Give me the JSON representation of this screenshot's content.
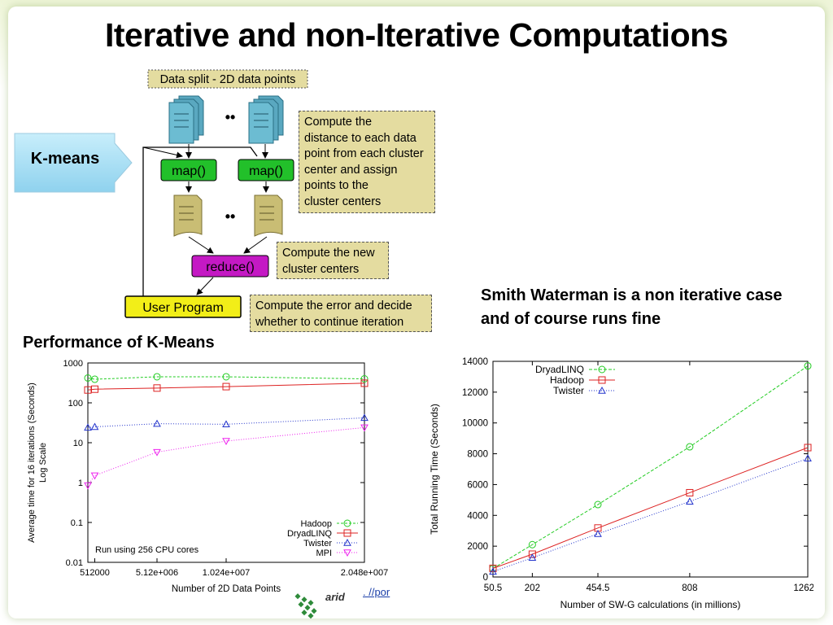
{
  "title": "Iterative and non-Iterative Computations",
  "callout": {
    "label": "K-means"
  },
  "diagram": {
    "data_split_label": "Data split - 2D data points",
    "ellipsis": "••",
    "map_label": "map()",
    "reduce_label": "reduce()",
    "user_program_label": "User Program",
    "notes": {
      "map_note": "Compute the\ndistance to each data\npoint from each cluster\ncenter and assign\npoints to the\ncluster centers",
      "reduce_note": "Compute the new\ncluster centers",
      "user_note": "Compute the error and decide\nwhether to continue iteration"
    }
  },
  "smith_waterman_text": "Smith Waterman is a non iterative case and of course runs fine",
  "performance_label": "Performance of K-Means",
  "bottom_link_text": ".   //por",
  "chart_data": [
    {
      "type": "line",
      "title": "",
      "xlabel": "Number of 2D Data Points",
      "ylabel": "Average time for 16 iterations (Seconds)",
      "ylabel2": "Log Scale",
      "yscale": "log",
      "ylim": [
        0.01,
        1000
      ],
      "xlim": [
        0,
        20480000
      ],
      "xtick_labels": [
        "512000",
        "5.12e+006",
        "1.024e+007",
        "2.048e+007"
      ],
      "xtick_values": [
        512000,
        5120000,
        10240000,
        20480000
      ],
      "ytick_labels": [
        "0.01",
        "0.1",
        "1",
        "10",
        "100",
        "1000"
      ],
      "annotation": "Run using 256 CPU cores",
      "legend_position": "bottom-right",
      "series": [
        {
          "name": "Hadoop",
          "color": "#22cc22",
          "marker": "circle",
          "dash": "3,2",
          "x": [
            0,
            512000,
            5120000,
            10240000,
            20480000
          ],
          "y": [
            420,
            390,
            450,
            450,
            400
          ]
        },
        {
          "name": "DryadLINQ",
          "color": "#dd2222",
          "marker": "square",
          "dash": "",
          "x": [
            0,
            512000,
            5120000,
            10240000,
            20480000
          ],
          "y": [
            210,
            220,
            235,
            255,
            310
          ]
        },
        {
          "name": "Twister",
          "color": "#2233cc",
          "marker": "triangle",
          "dash": "1,2",
          "x": [
            0,
            512000,
            5120000,
            10240000,
            20480000
          ],
          "y": [
            24,
            25,
            30,
            29,
            42
          ]
        },
        {
          "name": "MPI",
          "color": "#ee22ee",
          "marker": "triangle-down",
          "dash": "1,2",
          "x": [
            0,
            512000,
            5120000,
            10240000,
            20480000
          ],
          "y": [
            0.85,
            1.5,
            5.8,
            11,
            24
          ]
        }
      ]
    },
    {
      "type": "line",
      "title": "",
      "xlabel": "Number of SW-G calculations (in millions)",
      "ylabel": "Total Running Time (Seconds)",
      "xlim": [
        50.5,
        1262.5
      ],
      "ylim": [
        0,
        14000
      ],
      "xtick_labels": [
        "50.5",
        "202",
        "454.5",
        "808",
        "1262.5"
      ],
      "xtick_values": [
        50.5,
        202,
        454.5,
        808,
        1262.5
      ],
      "ytick_values": [
        0,
        2000,
        4000,
        6000,
        8000,
        10000,
        12000,
        14000
      ],
      "legend_position": "top-left",
      "series": [
        {
          "name": "DryadLINQ",
          "color": "#22cc22",
          "marker": "circle",
          "dash": "4,2",
          "x": [
            50.5,
            202,
            454.5,
            808,
            1262.5
          ],
          "y": [
            550,
            2100,
            4700,
            8450,
            13700
          ]
        },
        {
          "name": "Hadoop",
          "color": "#dd2222",
          "marker": "square",
          "dash": "",
          "x": [
            50.5,
            202,
            454.5,
            808,
            1262.5
          ],
          "y": [
            560,
            1480,
            3180,
            5470,
            8400
          ]
        },
        {
          "name": "Twister",
          "color": "#2233cc",
          "marker": "triangle",
          "dash": "1,2",
          "x": [
            50.5,
            202,
            454.5,
            808,
            1262.5
          ],
          "y": [
            350,
            1250,
            2800,
            4900,
            7700
          ]
        }
      ]
    }
  ]
}
